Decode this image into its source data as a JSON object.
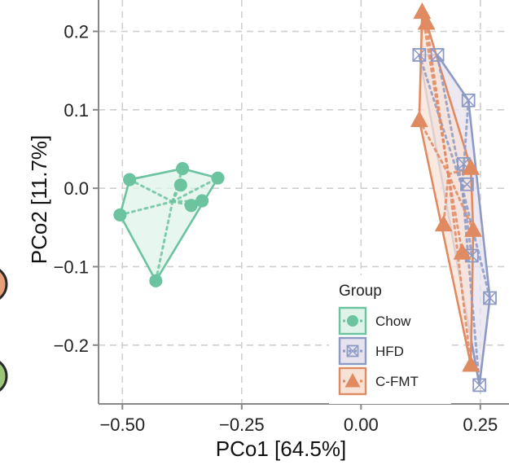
{
  "chart_data": {
    "type": "scatter",
    "xlabel": "PCo1 [64.5%]",
    "ylabel": "PCo2 [11.7%]",
    "xlim": [
      -0.55,
      0.31
    ],
    "ylim": [
      -0.275,
      0.24
    ],
    "x_ticks": [
      -0.5,
      -0.25,
      0.0,
      0.25
    ],
    "x_tick_labels": [
      "−0.50",
      "−0.25",
      "0.00",
      "0.25"
    ],
    "y_ticks": [
      0.2,
      0.1,
      0.0,
      -0.1,
      -0.2
    ],
    "y_tick_labels": [
      "0.2",
      "0.1",
      "0.0",
      "−0.1",
      "−0.2"
    ],
    "grid": true,
    "legend": {
      "title": "Group",
      "placement": "bottom-right",
      "entries": [
        "Chow",
        "HFD",
        "C-FMT"
      ]
    },
    "series": [
      {
        "name": "Chow",
        "marker": "circle",
        "color": "#6cc3a0",
        "fill": "#dff3ea",
        "points": [
          {
            "x": -0.505,
            "y": -0.034
          },
          {
            "x": -0.485,
            "y": 0.011
          },
          {
            "x": -0.374,
            "y": 0.025
          },
          {
            "x": -0.3,
            "y": 0.013
          },
          {
            "x": -0.378,
            "y": 0.004
          },
          {
            "x": -0.356,
            "y": -0.022
          },
          {
            "x": -0.333,
            "y": -0.016
          },
          {
            "x": -0.43,
            "y": -0.118
          }
        ],
        "hull": [
          0,
          1,
          2,
          3,
          7
        ],
        "centroid": {
          "x": -0.395,
          "y": -0.017
        }
      },
      {
        "name": "HFD",
        "marker": "square-cross",
        "color": "#8d9ac6",
        "fill": "#e6e2ee",
        "points": [
          {
            "x": 0.122,
            "y": 0.17
          },
          {
            "x": 0.16,
            "y": 0.17
          },
          {
            "x": 0.225,
            "y": 0.112
          },
          {
            "x": 0.215,
            "y": 0.031
          },
          {
            "x": 0.222,
            "y": 0.005
          },
          {
            "x": 0.232,
            "y": -0.086
          },
          {
            "x": 0.27,
            "y": -0.14
          },
          {
            "x": 0.248,
            "y": -0.251
          }
        ],
        "hull": [
          0,
          1,
          2,
          6,
          7
        ],
        "centroid": {
          "x": 0.212,
          "y": 0.001
        }
      },
      {
        "name": "C-FMT",
        "marker": "triangle",
        "color": "#e08a62",
        "fill": "#f7e2d6",
        "points": [
          {
            "x": 0.128,
            "y": 0.225
          },
          {
            "x": 0.137,
            "y": 0.211
          },
          {
            "x": 0.122,
            "y": 0.087
          },
          {
            "x": 0.23,
            "y": 0.026
          },
          {
            "x": 0.173,
            "y": -0.046
          },
          {
            "x": 0.235,
            "y": -0.053
          },
          {
            "x": 0.212,
            "y": -0.082
          },
          {
            "x": 0.23,
            "y": -0.225
          }
        ],
        "hull": [
          0,
          1,
          3,
          5,
          7,
          2
        ],
        "centroid": {
          "x": 0.183,
          "y": 0.018
        }
      }
    ]
  }
}
